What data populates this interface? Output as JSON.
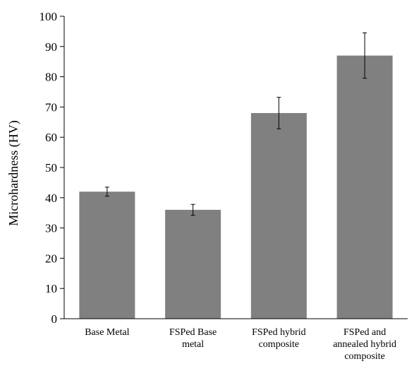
{
  "chart_data": {
    "type": "bar",
    "title": "",
    "xlabel": "",
    "ylabel": "Microhardness (HV)",
    "ylim": [
      0,
      100
    ],
    "yticks": [
      0,
      10,
      20,
      30,
      40,
      50,
      60,
      70,
      80,
      90,
      100
    ],
    "grid": false,
    "bar_color": "#808080",
    "categories": [
      [
        "Base Metal"
      ],
      [
        "FSPed Base",
        "metal"
      ],
      [
        "FSPed hybrid",
        "composite"
      ],
      [
        "FSPed and",
        "annealed hybrid",
        "composite"
      ]
    ],
    "values": [
      42,
      36,
      68,
      87
    ],
    "errors": [
      1.5,
      1.8,
      5.2,
      7.5
    ]
  }
}
